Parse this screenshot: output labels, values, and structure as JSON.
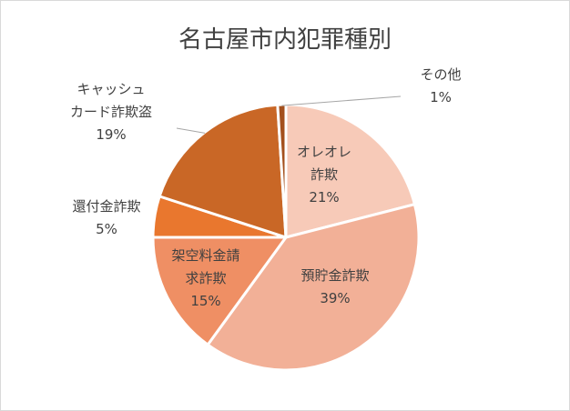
{
  "chart_data": {
    "type": "pie",
    "title": "名古屋市内犯罪種別",
    "slices": [
      {
        "label_lines": [
          "オレオレ",
          "詐欺"
        ],
        "pct_label": "21%",
        "value": 21,
        "color": "#F7CAB8"
      },
      {
        "label_lines": [
          "預貯金詐欺"
        ],
        "pct_label": "39%",
        "value": 39,
        "color": "#F2B097"
      },
      {
        "label_lines": [
          "架空料金請",
          "求詐欺"
        ],
        "pct_label": "15%",
        "value": 15,
        "color": "#EF8F64"
      },
      {
        "label_lines": [
          "還付金詐欺"
        ],
        "pct_label": "5%",
        "value": 5,
        "color": "#E9772E"
      },
      {
        "label_lines": [
          "キャッシュ",
          "カード詐欺盗"
        ],
        "pct_label": "19%",
        "value": 19,
        "color": "#C96726"
      },
      {
        "label_lines": [
          "その他"
        ],
        "pct_label": "1%",
        "value": 1,
        "color": "#A4501D"
      }
    ],
    "legend": "none"
  }
}
